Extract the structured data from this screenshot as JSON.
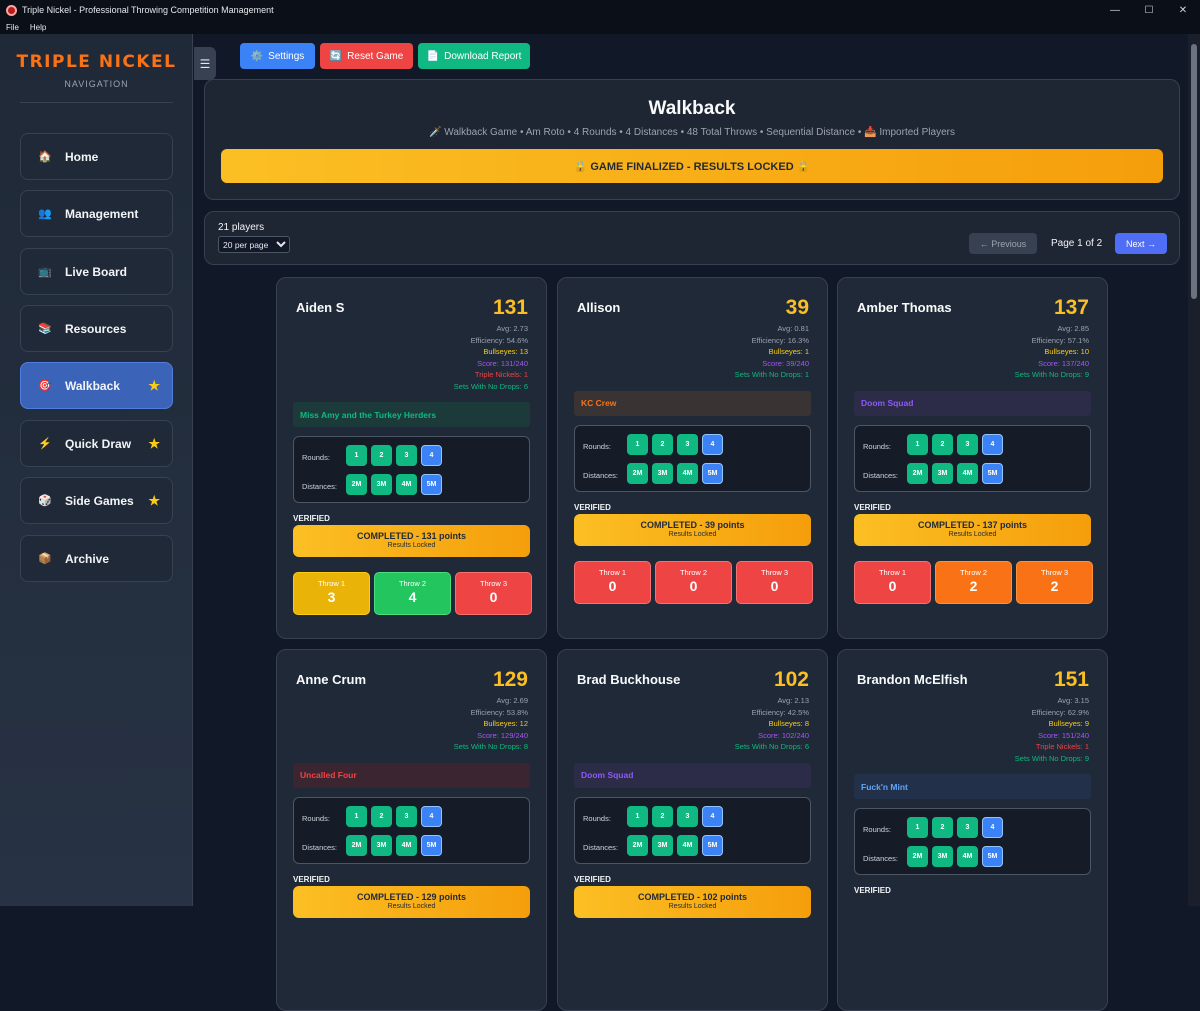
{
  "window": {
    "title": "Triple Nickel - Professional Throwing Competition Management",
    "minimize": "—",
    "maximize": "☐",
    "close": "✕"
  },
  "menu": {
    "file": "File",
    "help": "Help"
  },
  "sidebar": {
    "brand": "TRIPLE NICKEL",
    "subtitle": "NAVIGATION",
    "collapse": "☰",
    "items": [
      {
        "label": "Home",
        "icon": "🏠"
      },
      {
        "label": "Management",
        "icon": "👥"
      },
      {
        "label": "Live Board",
        "icon": "📺"
      },
      {
        "label": "Resources",
        "icon": "📚"
      },
      {
        "label": "Walkback",
        "icon": "🎯"
      },
      {
        "label": "Quick Draw",
        "icon": "⚡"
      },
      {
        "label": "Side Games",
        "icon": "🎲"
      },
      {
        "label": "Archive",
        "icon": "📦"
      }
    ],
    "star": "★"
  },
  "toolbar": {
    "settings": "Settings",
    "reset": "Reset Game",
    "download": "Download Report",
    "settings_icon": "⚙️",
    "reset_icon": "🔄",
    "download_icon": "📄"
  },
  "game": {
    "title": "Walkback",
    "subtitle": "🗡️ Walkback Game • Am Roto • 4 Rounds • 4 Distances • 48 Total Throws • Sequential Distance • 📥 Imported Players",
    "status": "🔒 GAME FINALIZED - RESULTS LOCKED 🔒"
  },
  "pager": {
    "count": "21 players",
    "per_page": "20 per page",
    "prev": "← Previous",
    "page": "Page 1 of 2",
    "next": "Next →"
  },
  "labels": {
    "rounds": "Rounds:",
    "distances": "Distances:",
    "verified": "VERIFIED",
    "locked": "Results Locked",
    "rounds_vals": [
      "1",
      "2",
      "3",
      "4"
    ],
    "dist_vals": [
      "2M",
      "3M",
      "4M",
      "5M"
    ]
  },
  "players": [
    {
      "name": "Aiden S",
      "score": "131",
      "avg": "Avg: 2.73",
      "eff": "Efficiency: 54.6%",
      "bulls": "Bullseyes: 13",
      "scoreline": "Score: 131/240",
      "triple": "Triple Nickels: 1",
      "sets": "Sets With No Drops: 6",
      "team": "Miss Amy and the Turkey Herders",
      "team_color": "#10b981",
      "team_bg": "#1d3a3a",
      "completed": "COMPLETED - 131 points",
      "throws": [
        {
          "label": "Throw 1",
          "value": "3",
          "color": "yellow"
        },
        {
          "label": "Throw 2",
          "value": "4",
          "color": "green"
        },
        {
          "label": "Throw 3",
          "value": "0",
          "color": "red"
        }
      ]
    },
    {
      "name": "Allison",
      "score": "39",
      "avg": "Avg: 0.81",
      "eff": "Efficiency: 16.3%",
      "bulls": "Bullseyes: 1",
      "scoreline": "Score: 39/240",
      "triple": "",
      "sets": "Sets With No Drops: 1",
      "team": "KC Crew",
      "team_color": "#f97316",
      "team_bg": "#3a3334",
      "completed": "COMPLETED - 39 points",
      "throws": [
        {
          "label": "Throw 1",
          "value": "0",
          "color": "red"
        },
        {
          "label": "Throw 2",
          "value": "0",
          "color": "red"
        },
        {
          "label": "Throw 3",
          "value": "0",
          "color": "red"
        }
      ]
    },
    {
      "name": "Amber Thomas",
      "score": "137",
      "avg": "Avg: 2.85",
      "eff": "Efficiency: 57.1%",
      "bulls": "Bullseyes: 10",
      "scoreline": "Score: 137/240",
      "triple": "",
      "sets": "Sets With No Drops: 9",
      "team": "Doom Squad",
      "team_color": "#8b5cf6",
      "team_bg": "#2c2b48",
      "completed": "COMPLETED - 137 points",
      "throws": [
        {
          "label": "Throw 1",
          "value": "0",
          "color": "red"
        },
        {
          "label": "Throw 2",
          "value": "2",
          "color": "orange"
        },
        {
          "label": "Throw 3",
          "value": "2",
          "color": "orange"
        }
      ]
    },
    {
      "name": "Anne Crum",
      "score": "129",
      "avg": "Avg: 2.69",
      "eff": "Efficiency: 53.8%",
      "bulls": "Bullseyes: 12",
      "scoreline": "Score: 129/240",
      "triple": "",
      "sets": "Sets With No Drops: 8",
      "team": "Uncalled Four",
      "team_color": "#ef4444",
      "team_bg": "#3b2530",
      "completed": "COMPLETED - 129 points",
      "throws": []
    },
    {
      "name": "Brad Buckhouse",
      "score": "102",
      "avg": "Avg: 2.13",
      "eff": "Efficiency: 42.5%",
      "bulls": "Bullseyes: 8",
      "scoreline": "Score: 102/240",
      "triple": "",
      "sets": "Sets With No Drops: 6",
      "team": "Doom Squad",
      "team_color": "#8b5cf6",
      "team_bg": "#2c2b48",
      "completed": "COMPLETED - 102 points",
      "throws": []
    },
    {
      "name": "Brandon McElfish",
      "score": "151",
      "avg": "Avg: 3.15",
      "eff": "Efficiency: 62.9%",
      "bulls": "Bullseyes: 9",
      "scoreline": "Score: 151/240",
      "triple": "Triple Nickels: 1",
      "sets": "Sets With No Drops: 9",
      "team": "Fuck'n Mint",
      "team_color": "#60a5fa",
      "team_bg": "#22304a",
      "completed": "",
      "throws": []
    }
  ]
}
